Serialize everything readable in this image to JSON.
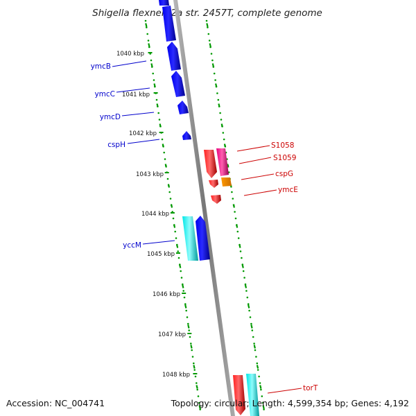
{
  "title": "Shigella flexneri 2a str. 2457T, complete genome",
  "footer": {
    "accession": "Accession: NC_004741",
    "topology": "Topology: circular; Length: 4,599,354 bp; Genes: 4,192"
  },
  "colors": {
    "ruler": "#009900",
    "backbone": "#888888",
    "left_label": "#0000cc",
    "right_label": "#cc0000",
    "blue_gene": "#0000ee",
    "cyan_gene": "#00e6e6",
    "red_gene": "#ee0000",
    "magenta_gene": "#e6007a",
    "orange_gene": "#ff9900"
  },
  "kbp_labels": [
    "1040 kbp",
    "1041 kbp",
    "1042 kbp",
    "1043 kbp",
    "1044 kbp",
    "1045 kbp",
    "1046 kbp",
    "1047 kbp",
    "1048 kbp"
  ],
  "genes_left": [
    {
      "label": "ymcB",
      "color": "blue"
    },
    {
      "label": "ymcC",
      "color": "blue"
    },
    {
      "label": "ymcD",
      "color": "blue"
    },
    {
      "label": "cspH",
      "color": "blue"
    },
    {
      "label": "yccM",
      "color": "cyan"
    }
  ],
  "genes_right": [
    {
      "label": "S1058",
      "color": "red"
    },
    {
      "label": "S1059",
      "color": "magenta"
    },
    {
      "label": "cspG",
      "color": "orange"
    },
    {
      "label": "ymcE",
      "color": "red"
    },
    {
      "label": "torT",
      "color": "red"
    }
  ]
}
